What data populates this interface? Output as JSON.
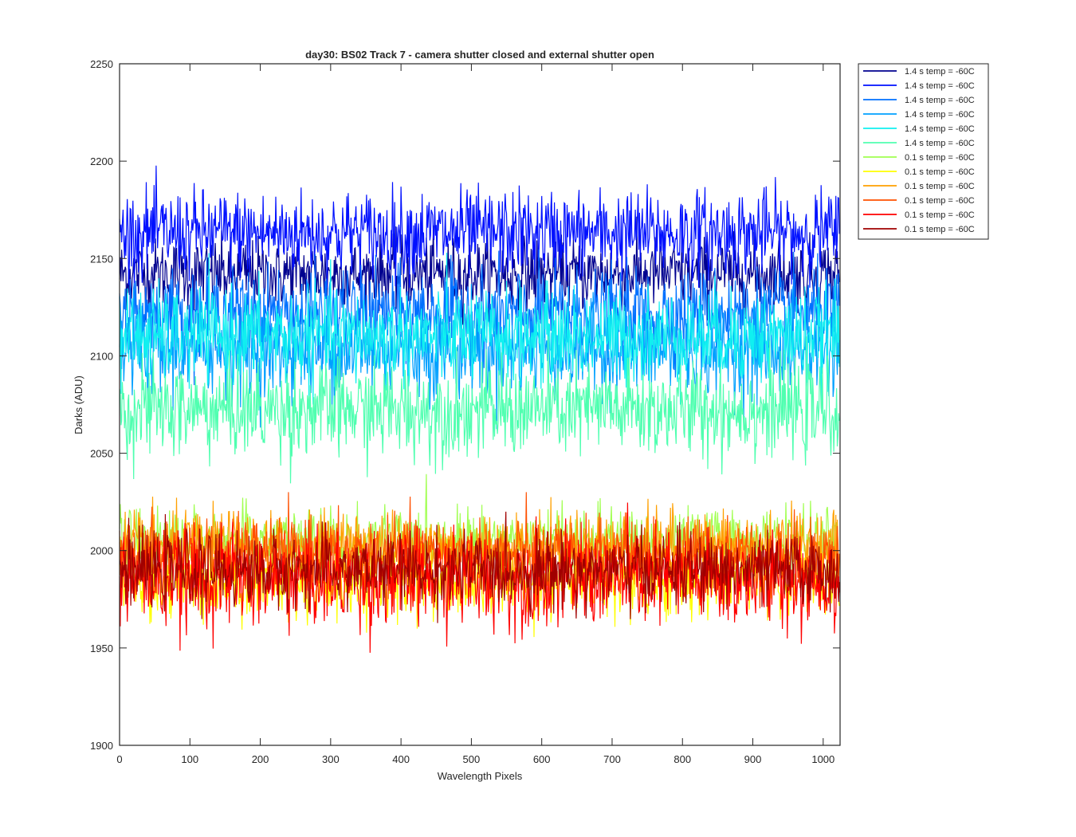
{
  "chart_data": {
    "type": "line",
    "title": "day30: BS02  Track 7 - camera shutter closed and external shutter open",
    "xlabel": "Wavelength Pixels",
    "ylabel": "Darks (ADU)",
    "xlim": [
      0,
      1024
    ],
    "ylim": [
      1900,
      2250
    ],
    "xticks": [
      "0",
      "100",
      "200",
      "300",
      "400",
      "500",
      "600",
      "700",
      "800",
      "900",
      "1000"
    ],
    "yticks": [
      "1900",
      "1950",
      "2000",
      "2050",
      "2100",
      "2150",
      "2200",
      "2250"
    ],
    "grid": false,
    "legend_position": "outside-top-right",
    "n_points": 1024,
    "series": [
      {
        "name": "1.4 s temp = -60C",
        "color": "#00008f",
        "mean": 2142,
        "spread": 9,
        "min": 2115,
        "max": 2172
      },
      {
        "name": "1.4 s temp = -60C",
        "color": "#0010ff",
        "mean": 2163,
        "spread": 11,
        "min": 2135,
        "max": 2208
      },
      {
        "name": "1.4 s temp = -60C",
        "color": "#0070ff",
        "mean": 2122,
        "spread": 11,
        "min": 2085,
        "max": 2160
      },
      {
        "name": "1.4 s temp = -60C",
        "color": "#00a0ff",
        "mean": 2103,
        "spread": 12,
        "min": 2058,
        "max": 2150
      },
      {
        "name": "1.4 s temp = -60C",
        "color": "#10f0f0",
        "mean": 2110,
        "spread": 12,
        "min": 2075,
        "max": 2155
      },
      {
        "name": "1.4 s temp = -60C",
        "color": "#50ffb0",
        "mean": 2072,
        "spread": 12,
        "min": 2025,
        "max": 2110
      },
      {
        "name": "0.1 s temp = -60C",
        "color": "#a0ff50",
        "mean": 2005,
        "spread": 8,
        "min": 1985,
        "max": 2040
      },
      {
        "name": "0.1 s temp = -60C",
        "color": "#ffff00",
        "mean": 1985,
        "spread": 10,
        "min": 1926,
        "max": 2015
      },
      {
        "name": "0.1 s temp = -60C",
        "color": "#ffa000",
        "mean": 2002,
        "spread": 9,
        "min": 1975,
        "max": 2040
      },
      {
        "name": "0.1 s temp = -60C",
        "color": "#ff5000",
        "mean": 1998,
        "spread": 9,
        "min": 1965,
        "max": 2030
      },
      {
        "name": "0.1 s temp = -60C",
        "color": "#ff0000",
        "mean": 1985,
        "spread": 12,
        "min": 1930,
        "max": 2036
      },
      {
        "name": "0.1 s temp = -60C",
        "color": "#a00000",
        "mean": 1990,
        "spread": 9,
        "min": 1955,
        "max": 2020
      }
    ]
  }
}
